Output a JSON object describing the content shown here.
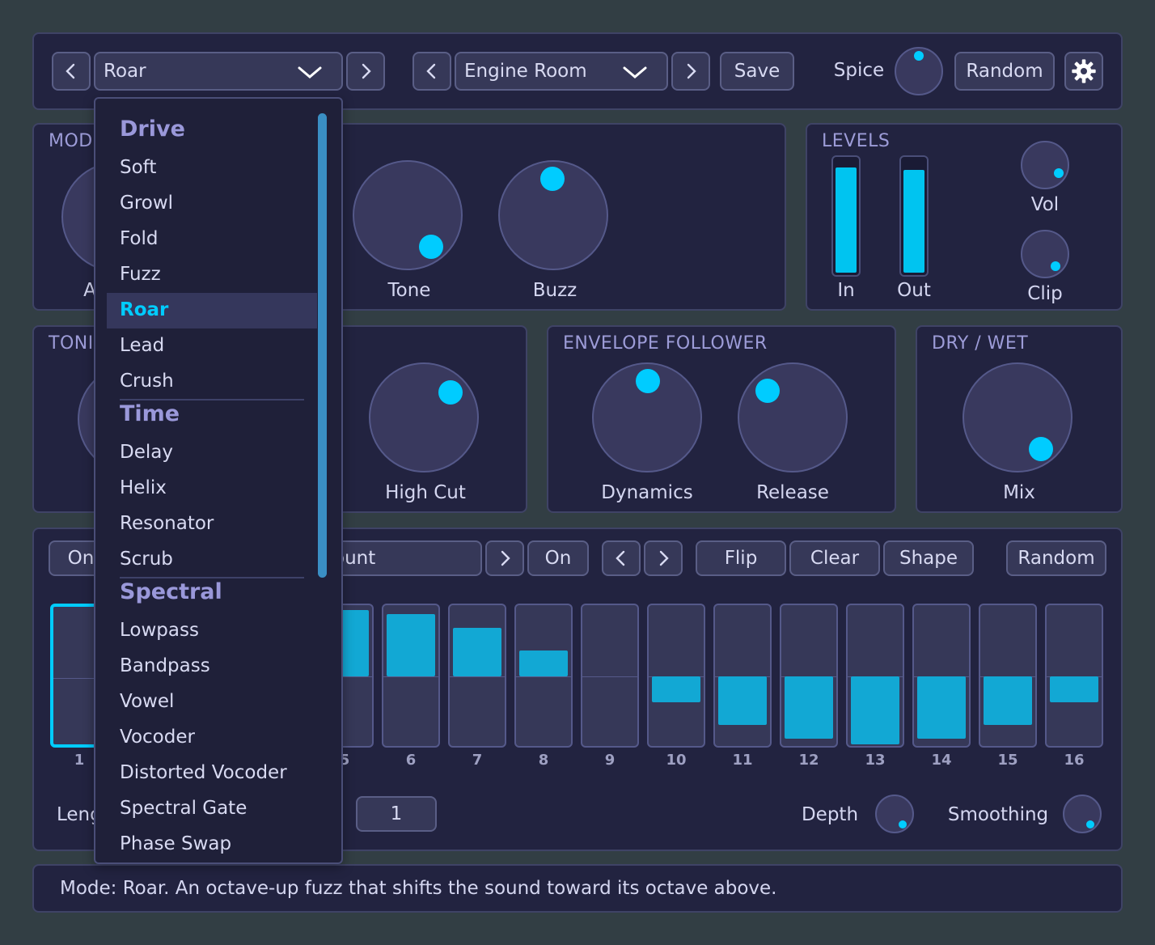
{
  "header": {
    "mode_select": "Roar",
    "preset_select": "Engine Room",
    "save_label": "Save",
    "spice_label": "Spice",
    "random_label": "Random"
  },
  "mode_panel": {
    "title": "MOD",
    "knob_a_label": "A",
    "tone_label": "Tone",
    "buzz_label": "Buzz"
  },
  "levels": {
    "title": "LEVELS",
    "in_label": "In",
    "out_label": "Out",
    "vol_label": "Vol",
    "clip_label": "Clip",
    "in_level": 0.93,
    "out_level": 0.91
  },
  "tone_panel": {
    "title": "TONI",
    "high_cut_label": "High Cut"
  },
  "envelope": {
    "title": "ENVELOPE FOLLOWER",
    "dynamics_label": "Dynamics",
    "release_label": "Release"
  },
  "drywet": {
    "title": "DRY / WET",
    "mix_label": "Mix"
  },
  "modulation": {
    "on_left": "On",
    "target_select": "ount",
    "on_right": "On",
    "flip": "Flip",
    "clear": "Clear",
    "shape": "Shape",
    "random": "Random",
    "length_label": "Leng",
    "length_value": "1",
    "depth_label": "Depth",
    "smoothing_label": "Smoothing",
    "steps": [
      {
        "num": "1",
        "value": 0
      },
      {
        "num": "5",
        "value": 0.95
      },
      {
        "num": "6",
        "value": 0.9
      },
      {
        "num": "7",
        "value": 0.7
      },
      {
        "num": "8",
        "value": 0.37
      },
      {
        "num": "9",
        "value": 0
      },
      {
        "num": "10",
        "value": -0.37
      },
      {
        "num": "11",
        "value": -0.7
      },
      {
        "num": "12",
        "value": -0.9
      },
      {
        "num": "13",
        "value": -0.98
      },
      {
        "num": "14",
        "value": -0.9
      },
      {
        "num": "15",
        "value": -0.7
      },
      {
        "num": "16",
        "value": -0.37
      }
    ]
  },
  "dropdown": {
    "groups": [
      {
        "heading": "Drive",
        "items": [
          "Soft",
          "Growl",
          "Fold",
          "Fuzz",
          "Roar",
          "Lead",
          "Crush"
        ]
      },
      {
        "heading": "Time",
        "items": [
          "Delay",
          "Helix",
          "Resonator",
          "Scrub"
        ]
      },
      {
        "heading": "Spectral",
        "items": [
          "Lowpass",
          "Bandpass",
          "Vowel",
          "Vocoder",
          "Distorted Vocoder",
          "Spectral Gate",
          "Phase Swap"
        ]
      }
    ],
    "selected": "Roar"
  },
  "status": "Mode: Roar. An octave-up fuzz that shifts the sound toward its octave above.",
  "colors": {
    "background": "#323e44",
    "panel": "#222340",
    "accent": "#00ccff"
  }
}
